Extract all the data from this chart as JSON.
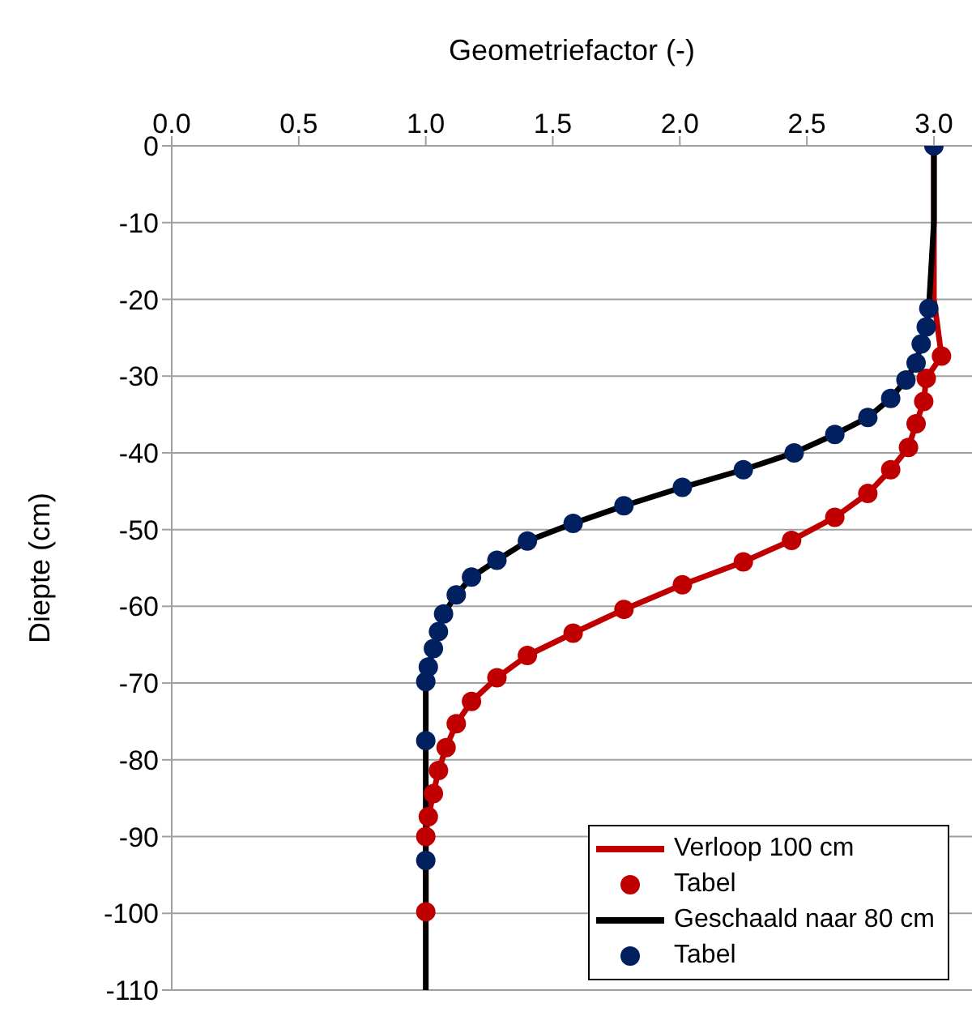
{
  "chart_data": {
    "type": "line",
    "xlabel": "Geometriefactor (-)",
    "ylabel": "Diepte (cm)",
    "xlim": [
      0,
      3.15
    ],
    "xticks": [
      {
        "value": 0,
        "label": "0.0"
      },
      {
        "value": 0.5,
        "label": "0.5"
      },
      {
        "value": 1,
        "label": "1.0"
      },
      {
        "value": 1.5,
        "label": "1.5"
      },
      {
        "value": 2,
        "label": "2.0"
      },
      {
        "value": 2.5,
        "label": "2.5"
      },
      {
        "value": 3,
        "label": "3.0"
      }
    ],
    "ylim": [
      -110,
      0
    ],
    "yticks": [
      0,
      -10,
      -20,
      -30,
      -40,
      -50,
      -60,
      -70,
      -80,
      -90,
      -100,
      -110
    ],
    "grid": "y",
    "legend": "bottom right",
    "series": [
      {
        "name": "Verloop 100 cm",
        "color": "#c00000",
        "marker": "none",
        "line_style": "solid",
        "x": [
          3.0,
          3.0,
          3.03,
          2.97,
          2.96,
          2.93,
          2.9,
          2.83,
          2.74,
          2.61,
          2.44,
          2.25,
          2.01,
          1.78,
          1.58,
          1.4,
          1.28,
          1.18,
          1.12,
          1.08,
          1.05,
          1.03,
          1.01,
          1.0,
          1.0
        ],
        "values": [
          0,
          -20,
          -27.4,
          -30.3,
          -33.3,
          -36.2,
          -39.3,
          -42.2,
          -45.3,
          -48.4,
          -51.4,
          -54.2,
          -57.2,
          -60.4,
          -63.5,
          -66.4,
          -69.3,
          -72.4,
          -75.3,
          -78.4,
          -81.4,
          -84.4,
          -87.4,
          -90.0,
          -99.8
        ]
      },
      {
        "type": "scatter",
        "name": "Tabel",
        "color": "#c00000",
        "marker": "circle",
        "x": [
          3.03,
          2.97,
          2.96,
          2.93,
          2.9,
          2.83,
          2.74,
          2.61,
          2.44,
          2.25,
          2.01,
          1.78,
          1.58,
          1.4,
          1.28,
          1.18,
          1.12,
          1.08,
          1.05,
          1.03,
          1.01,
          1.0,
          1.0
        ],
        "values": [
          -27.4,
          -30.3,
          -33.3,
          -36.2,
          -39.3,
          -42.2,
          -45.3,
          -48.4,
          -51.4,
          -54.2,
          -57.2,
          -60.4,
          -63.5,
          -66.4,
          -69.3,
          -72.4,
          -75.3,
          -78.4,
          -81.4,
          -84.4,
          -87.4,
          -90.0,
          -99.8
        ]
      },
      {
        "name": "Geschaald naar 80 cm",
        "color": "#000000",
        "marker": "none",
        "line_style": "solid",
        "x": [
          3.0,
          3.0,
          2.98,
          2.97,
          2.95,
          2.93,
          2.89,
          2.83,
          2.74,
          2.61,
          2.45,
          2.25,
          2.01,
          1.78,
          1.58,
          1.4,
          1.28,
          1.18,
          1.12,
          1.07,
          1.05,
          1.03,
          1.01,
          1.0,
          1.0,
          1.0,
          1.0
        ],
        "values": [
          0,
          -10,
          -21.2,
          -23.6,
          -25.8,
          -28.3,
          -30.5,
          -32.9,
          -35.4,
          -37.6,
          -40.0,
          -42.2,
          -44.5,
          -46.9,
          -49.2,
          -51.5,
          -54.0,
          -56.2,
          -58.5,
          -61.0,
          -63.3,
          -65.5,
          -67.9,
          -69.8,
          -77.5,
          -93.1,
          -110
        ]
      },
      {
        "type": "scatter",
        "name": "Tabel",
        "color": "#002060",
        "marker": "circle",
        "x": [
          3.0,
          2.98,
          2.97,
          2.95,
          2.93,
          2.89,
          2.83,
          2.74,
          2.61,
          2.45,
          2.25,
          2.01,
          1.78,
          1.58,
          1.4,
          1.28,
          1.18,
          1.12,
          1.07,
          1.05,
          1.03,
          1.01,
          1.0,
          1.0,
          1.0
        ],
        "values": [
          0,
          -21.2,
          -23.6,
          -25.8,
          -28.3,
          -30.5,
          -32.9,
          -35.4,
          -37.6,
          -40.0,
          -42.2,
          -44.5,
          -46.9,
          -49.2,
          -51.5,
          -54.0,
          -56.2,
          -58.5,
          -61.0,
          -63.3,
          -65.5,
          -67.9,
          -69.8,
          -77.5,
          -93.1
        ]
      }
    ]
  }
}
